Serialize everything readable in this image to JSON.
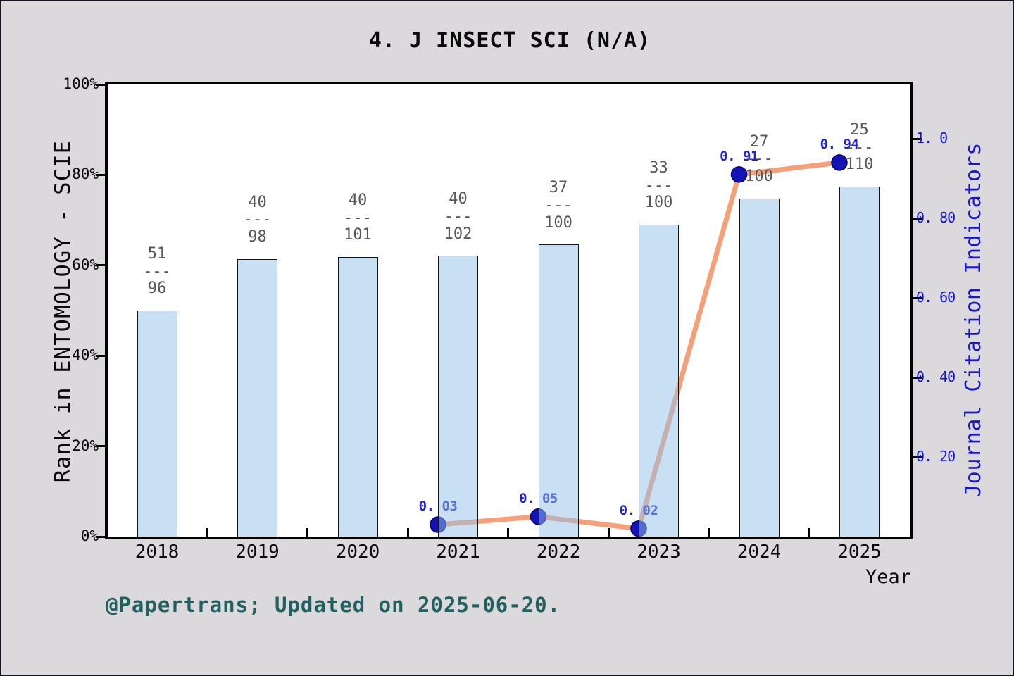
{
  "window": {
    "title": "4. J INSECT SCI (N/A)"
  },
  "footer": {
    "credit": "@Papertrans; Updated on 2025-06-20."
  },
  "colors": {
    "figure_background": "#dcd9dd",
    "plot_background": "#ffffff",
    "axis": "#000000",
    "bar_fill_base": "#93bfe7",
    "bar_edge": "#151515",
    "line": "#f6a07a",
    "marker": "#1414b4",
    "marker_edge": "#00006b",
    "point_label_blue": "#2222cf",
    "right_axis_blue": "#1616d2",
    "fraction_gray": "#58585a",
    "footer_teal": "#20605e"
  },
  "chart_data": {
    "type": "combo",
    "subtypes": [
      "bar",
      "line"
    ],
    "title": "4. J INSECT SCI (N/A)",
    "categories": [
      "2018",
      "2019",
      "2020",
      "2021",
      "2022",
      "2023",
      "2024",
      "2025"
    ],
    "bars": {
      "name": "Rank in ENTOMOLOGY - SCIE",
      "unit": "percentile",
      "values_pct": [
        50.0,
        61.4,
        61.8,
        62.1,
        64.6,
        69.0,
        74.8,
        77.4
      ],
      "rank_fractions": [
        {
          "rank": 51,
          "total": 96
        },
        {
          "rank": 40,
          "total": 98
        },
        {
          "rank": 40,
          "total": 101
        },
        {
          "rank": 40,
          "total": 102
        },
        {
          "rank": 37,
          "total": 100
        },
        {
          "rank": 33,
          "total": 100
        },
        {
          "rank": 27,
          "total": 100
        },
        {
          "rank": 25,
          "total": 110
        }
      ],
      "fraction_separator": "---",
      "bar_alpha": 0.5
    },
    "line": {
      "name": "Journal Citation Indicators",
      "x": [
        "2021",
        "2022",
        "2023",
        "2024",
        "2025"
      ],
      "values": [
        0.03,
        0.05,
        0.02,
        0.91,
        0.94
      ],
      "point_labels": [
        "0. 03",
        "0. 05",
        "0. 02",
        "0. 91",
        "0. 94"
      ]
    },
    "left_axis": {
      "title": "Rank in ENTOMOLOGY - SCIE",
      "range": [
        0,
        100
      ],
      "ticks": [
        {
          "v": 0,
          "label": "0%"
        },
        {
          "v": 20,
          "label": "20%"
        },
        {
          "v": 40,
          "label": "40%"
        },
        {
          "v": 60,
          "label": "60%"
        },
        {
          "v": 80,
          "label": "80%"
        },
        {
          "v": 100,
          "label": "100%"
        }
      ]
    },
    "right_axis": {
      "title": "Journal Citation Indicators",
      "range": [
        0,
        1.136
      ],
      "ticks": [
        {
          "v": 0.2,
          "label": "0. 20"
        },
        {
          "v": 0.4,
          "label": "0. 40"
        },
        {
          "v": 0.6,
          "label": "0. 60"
        },
        {
          "v": 0.8,
          "label": "0. 80"
        },
        {
          "v": 1.0,
          "label": "1. 0"
        }
      ]
    },
    "x_axis": {
      "title": "Year"
    },
    "grid": false,
    "legend": "none"
  }
}
